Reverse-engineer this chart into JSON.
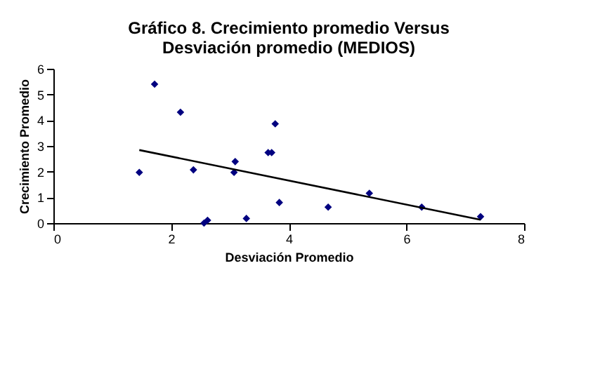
{
  "chart_data": {
    "type": "scatter",
    "title": [
      "Gráfico 8. Crecimiento promedio Versus",
      "Desviación promedio (MEDIOS)"
    ],
    "xlabel": "Desviación Promedio",
    "ylabel": "Crecimiento Promedio",
    "xlim": [
      0,
      8
    ],
    "xticks": [
      0,
      2,
      4,
      6,
      8
    ],
    "ylim": [
      0,
      6
    ],
    "yticks": [
      0,
      1,
      2,
      3,
      4,
      5,
      6
    ],
    "grid": false,
    "legend": false,
    "series": [
      {
        "color": "#000080",
        "marker": "diamond",
        "x": [
          1.46,
          1.72,
          2.16,
          2.38,
          2.56,
          2.62,
          3.09,
          3.07,
          3.28,
          3.65,
          3.71,
          3.77,
          3.84,
          4.67,
          5.37,
          6.26,
          7.26
        ],
        "values": [
          1.97,
          5.4,
          4.31,
          2.07,
          0.0,
          0.11,
          2.39,
          1.97,
          0.18,
          2.74,
          2.74,
          3.86,
          0.8,
          0.62,
          1.16,
          0.62,
          0.25
        ]
      },
      {
        "type": "line",
        "color": "#000000",
        "marker": "none",
        "line_style": "solid",
        "x": [
          1.46,
          7.26
        ],
        "values": [
          2.84,
          0.13
        ]
      }
    ]
  }
}
